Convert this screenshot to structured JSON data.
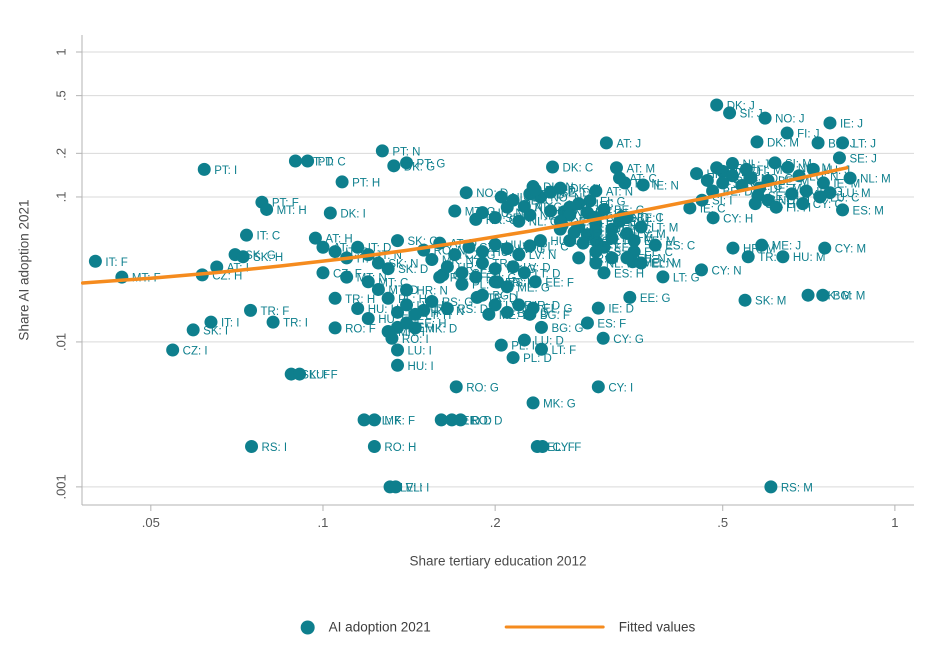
{
  "figure": {
    "background": "#ffffff"
  },
  "chart_data": {
    "type": "scatter",
    "title": "",
    "xlabel": "Share tertiary education 2012",
    "ylabel": "Share AI adoption 2021",
    "x_scale": "log",
    "y_scale": "log",
    "xlim": [
      0.0379,
      1.08
    ],
    "ylim": [
      0.00075,
      1.31
    ],
    "x_ticks": [
      0.05,
      0.1,
      0.2,
      0.5,
      1
    ],
    "y_ticks": [
      1,
      0.5,
      0.2,
      0.1,
      0.01,
      0.001
    ],
    "grid": "horizontal-only",
    "colors": {
      "point": "#0e7f8d",
      "point_label": "#0e7f8d",
      "fit_line": "#f58b1e",
      "gridline": "#d9d9d9",
      "axis": "#b3b3b3",
      "tick_label": "#565656"
    },
    "legend": [
      {
        "label": "AI adoption 2021",
        "marker": "point"
      },
      {
        "label": "Fitted values",
        "marker": "line"
      }
    ],
    "fitted_line": {
      "points": [
        [
          0.038,
          0.0255
        ],
        [
          0.05,
          0.0275
        ],
        [
          0.065,
          0.0301
        ],
        [
          0.085,
          0.0335
        ],
        [
          0.11,
          0.0377
        ],
        [
          0.14,
          0.0428
        ],
        [
          0.18,
          0.0496
        ],
        [
          0.23,
          0.0581
        ],
        [
          0.29,
          0.0683
        ],
        [
          0.37,
          0.0819
        ],
        [
          0.47,
          0.0989
        ],
        [
          0.58,
          0.1176
        ],
        [
          0.7,
          0.138
        ],
        [
          0.824,
          0.159
        ]
      ]
    },
    "points": [
      [
        "IT: F",
        0.04,
        0.036
      ],
      [
        "MT: F",
        0.0445,
        0.028
      ],
      [
        "CZ: H",
        0.0615,
        0.029
      ],
      [
        "CZ: I",
        0.0546,
        0.0088
      ],
      [
        "SK: I",
        0.0593,
        0.0121
      ],
      [
        "PT: I",
        0.062,
        0.155
      ],
      [
        "IT: I",
        0.0637,
        0.0137
      ],
      [
        "TR: I",
        0.0818,
        0.0137
      ],
      [
        "TR: F",
        0.0747,
        0.0165
      ],
      [
        "IT: C",
        0.0735,
        0.0545
      ],
      [
        "SK: G",
        0.0702,
        0.04
      ],
      [
        "SK: H",
        0.0725,
        0.0387
      ],
      [
        "AT: I",
        0.0652,
        0.0329
      ],
      [
        "PT: F",
        0.0782,
        0.092
      ],
      [
        "MT: H",
        0.0797,
        0.082
      ],
      [
        "PT: D",
        0.0895,
        0.177
      ],
      [
        "PT: C",
        0.094,
        0.177
      ],
      [
        "PT: N",
        0.127,
        0.208
      ],
      [
        "PT: G",
        0.14,
        0.172
      ],
      [
        "DK: G",
        0.133,
        0.164
      ],
      [
        "PT: H",
        0.108,
        0.127
      ],
      [
        "DK: I",
        0.103,
        0.0775
      ],
      [
        "RS: I",
        0.075,
        0.0019
      ],
      [
        "RO: H",
        0.123,
        0.0019
      ],
      [
        "SK: F",
        0.088,
        0.006
      ],
      [
        "LU: F",
        0.091,
        0.006
      ],
      [
        "LV: I",
        0.131,
        0.001
      ],
      [
        "EL: I",
        0.134,
        0.001
      ],
      [
        "HU: I",
        0.135,
        0.0069
      ],
      [
        "LU: I",
        0.135,
        0.0088
      ],
      [
        "ME: I",
        0.135,
        0.0126
      ],
      [
        "RO: I",
        0.132,
        0.0106
      ],
      [
        "RO: G",
        0.171,
        0.0049
      ],
      [
        "MK: G",
        0.233,
        0.0038
      ],
      [
        "CY: I",
        0.303,
        0.0049
      ],
      [
        "PL: F",
        0.118,
        0.0029
      ],
      [
        "MK: F",
        0.123,
        0.0029
      ],
      [
        "EL: D",
        0.161,
        0.0029
      ],
      [
        "EE: D",
        0.168,
        0.0029
      ],
      [
        "RO: D",
        0.174,
        0.0029
      ],
      [
        "EL: F",
        0.237,
        0.0019
      ],
      [
        "CY: F",
        0.242,
        0.0019
      ],
      [
        "RS: M",
        0.607,
        0.001
      ],
      [
        "PL: D",
        0.215,
        0.0078
      ],
      [
        "LT: F",
        0.241,
        0.0089
      ],
      [
        "PL: I",
        0.205,
        0.0095
      ],
      [
        "LU: D",
        0.225,
        0.0103
      ],
      [
        "CY: G",
        0.309,
        0.0106
      ],
      [
        "BG: G",
        0.241,
        0.0126
      ],
      [
        "ES: F",
        0.29,
        0.0135
      ],
      [
        "EL: G",
        0.233,
        0.0171
      ],
      [
        "IE: D",
        0.303,
        0.0171
      ],
      [
        "TR: D",
        0.186,
        0.0203
      ],
      [
        "ES: I",
        0.202,
        0.0259
      ],
      [
        "LT: G",
        0.393,
        0.0281
      ],
      [
        "EE: G",
        0.344,
        0.0203
      ],
      [
        "ME: N",
        0.348,
        0.0357
      ],
      [
        "ES: C",
        0.381,
        0.0465
      ],
      [
        "CZ: N",
        0.162,
        0.029
      ],
      [
        "HR: N",
        0.14,
        0.0228
      ],
      [
        "CY: N",
        0.459,
        0.0314
      ],
      [
        "TR: N",
        0.554,
        0.0387
      ],
      [
        "HU: M",
        0.637,
        0.0387
      ],
      [
        "ME: J",
        0.585,
        0.0465
      ],
      [
        "CY: M",
        0.754,
        0.0444
      ],
      [
        "HR: M",
        0.521,
        0.0444
      ],
      [
        "SK: M",
        0.547,
        0.0194
      ],
      [
        "MK: M",
        0.705,
        0.021
      ],
      [
        "BG: M",
        0.748,
        0.021
      ],
      [
        "IE: C",
        0.438,
        0.084
      ],
      [
        "CY: H",
        0.481,
        0.0718
      ],
      [
        "FI: G",
        0.293,
        0.094
      ],
      [
        "DK: C",
        0.252,
        0.161
      ],
      [
        "AT: M",
        0.326,
        0.159
      ],
      [
        "AT: J",
        0.313,
        0.236
      ],
      [
        "FI: N",
        0.337,
        0.125
      ],
      [
        "DK: N",
        0.233,
        0.118
      ],
      [
        "NO: D",
        0.178,
        0.107
      ],
      [
        "NL: N",
        0.264,
        0.079
      ],
      [
        "SE: N",
        0.262,
        0.064
      ],
      [
        "IE: N",
        0.363,
        0.121
      ],
      [
        "NO: C",
        0.333,
        0.073
      ],
      [
        "DK: J",
        0.488,
        0.431
      ],
      [
        "SI: J",
        0.514,
        0.38
      ],
      [
        "NO: J",
        0.593,
        0.35
      ],
      [
        "IE: J",
        0.77,
        0.324
      ],
      [
        "FI: J",
        0.648,
        0.276
      ],
      [
        "DK: M",
        0.574,
        0.24
      ],
      [
        "LT: J",
        0.81,
        0.236
      ],
      [
        "BE: J",
        0.734,
        0.236
      ],
      [
        "SE: J",
        0.8,
        0.186
      ],
      [
        "NL: M",
        0.835,
        0.135
      ],
      [
        "LU: M",
        0.77,
        0.107
      ],
      [
        "ES: M",
        0.81,
        0.0815
      ],
      [
        "IE: M",
        0.75,
        0.125
      ],
      [
        "SE: M",
        0.576,
        0.102
      ],
      [
        "HR: J",
        0.488,
        0.159
      ],
      [
        "SI: M",
        0.617,
        0.172
      ],
      [
        "SI: N",
        0.21,
        0.085
      ],
      [
        "MT: G",
        0.17,
        0.08
      ],
      [
        "HU: N",
        0.19,
        0.078
      ],
      [
        "HR: G",
        0.185,
        0.07
      ],
      [
        "SE: I",
        0.2,
        0.072
      ],
      [
        "NL: I",
        0.23,
        0.075
      ],
      [
        "NO: I",
        0.25,
        0.08
      ],
      [
        "SE: C",
        0.215,
        0.095
      ],
      [
        "NO: N",
        0.24,
        0.1
      ],
      [
        "NL: D",
        0.205,
        0.1
      ],
      [
        "FI: D",
        0.23,
        0.105
      ],
      [
        "SE: D",
        0.25,
        0.108
      ],
      [
        "NL: G",
        0.22,
        0.068
      ],
      [
        "DK: D",
        0.235,
        0.112
      ],
      [
        "DK: H",
        0.26,
        0.115
      ],
      [
        "AT: D",
        0.16,
        0.048
      ],
      [
        "RO: N",
        0.15,
        0.043
      ],
      [
        "MK: N",
        0.155,
        0.037
      ],
      [
        "HR: I",
        0.165,
        0.033
      ],
      [
        "SE: F",
        0.175,
        0.03
      ],
      [
        "FR: G",
        0.185,
        0.028
      ],
      [
        "FR: I",
        0.2,
        0.026
      ],
      [
        "ME: G",
        0.21,
        0.024
      ],
      [
        "PL: G",
        0.175,
        0.025
      ],
      [
        "PL: N",
        0.16,
        0.028
      ],
      [
        "BG: I",
        0.19,
        0.021
      ],
      [
        "CZ: G",
        0.17,
        0.04
      ],
      [
        "CZ: D",
        0.18,
        0.045
      ],
      [
        "HU: G",
        0.19,
        0.042
      ],
      [
        "HU: D",
        0.2,
        0.047
      ],
      [
        "LV: G",
        0.21,
        0.044
      ],
      [
        "LV: N",
        0.22,
        0.04
      ],
      [
        "PL: C",
        0.23,
        0.046
      ],
      [
        "HU: C",
        0.24,
        0.05
      ],
      [
        "LV: D",
        0.215,
        0.033
      ],
      [
        "LT: D",
        0.225,
        0.03
      ],
      [
        "EE: F",
        0.235,
        0.026
      ],
      [
        "LV: F",
        0.2,
        0.018
      ],
      [
        "BG: D",
        0.21,
        0.016
      ],
      [
        "HR: D",
        0.22,
        0.018
      ],
      [
        "BG: F",
        0.23,
        0.0155
      ],
      [
        "TR: C",
        0.19,
        0.035
      ],
      [
        "TR: G",
        0.2,
        0.032
      ],
      [
        "RS: G",
        0.155,
        0.019
      ],
      [
        "RS: D",
        0.165,
        0.017
      ],
      [
        "RS: N",
        0.15,
        0.0165
      ],
      [
        "ME: D",
        0.195,
        0.0155
      ],
      [
        "AT: F",
        0.1,
        0.045
      ],
      [
        "AT: H",
        0.097,
        0.052
      ],
      [
        "IT: G",
        0.105,
        0.042
      ],
      [
        "IT: H",
        0.11,
        0.038
      ],
      [
        "IT: D",
        0.115,
        0.045
      ],
      [
        "IT: N",
        0.12,
        0.04
      ],
      [
        "SK: N",
        0.125,
        0.035
      ],
      [
        "SK: D",
        0.13,
        0.032
      ],
      [
        "SK: C",
        0.135,
        0.05
      ],
      [
        "CZ: F",
        0.1,
        0.03
      ],
      [
        "MT: N",
        0.11,
        0.028
      ],
      [
        "MT: C",
        0.12,
        0.026
      ],
      [
        "MT: D",
        0.125,
        0.023
      ],
      [
        "TR: H",
        0.105,
        0.02
      ],
      [
        "PL: H",
        0.13,
        0.02
      ],
      [
        "HU: H",
        0.115,
        0.017
      ],
      [
        "HU: F",
        0.12,
        0.0145
      ],
      [
        "BG: H",
        0.135,
        0.016
      ],
      [
        "LV: H",
        0.14,
        0.018
      ],
      [
        "LT: H",
        0.145,
        0.0155
      ],
      [
        "EE: H",
        0.14,
        0.0135
      ],
      [
        "RO: F",
        0.105,
        0.0125
      ],
      [
        "MK: D",
        0.145,
        0.0125
      ],
      [
        "MK: I",
        0.13,
        0.0118
      ],
      [
        "FI: C",
        0.28,
        0.09
      ],
      [
        "EE: N",
        0.3,
        0.065
      ],
      [
        "EE: C",
        0.32,
        0.06
      ],
      [
        "LT: M",
        0.36,
        0.062
      ],
      [
        "LV: M",
        0.34,
        0.056
      ],
      [
        "EE: M",
        0.35,
        0.05
      ],
      [
        "LT: I",
        0.3,
        0.05
      ],
      [
        "EE: I",
        0.31,
        0.045
      ],
      [
        "FI: I",
        0.33,
        0.068
      ],
      [
        "NL: C",
        0.27,
        0.085
      ],
      [
        "BE: N",
        0.29,
        0.078
      ],
      [
        "BE: G",
        0.3,
        0.072
      ],
      [
        "BE: C",
        0.31,
        0.082
      ],
      [
        "DE: C",
        0.27,
        0.075
      ],
      [
        "DE: G",
        0.26,
        0.068
      ],
      [
        "DE: N",
        0.28,
        0.062
      ],
      [
        "FR: C",
        0.29,
        0.055
      ],
      [
        "FR: N",
        0.3,
        0.058
      ],
      [
        "FR: M",
        0.32,
        0.052
      ],
      [
        "BE: I",
        0.34,
        0.072
      ],
      [
        "ES: G",
        0.27,
        0.05
      ],
      [
        "ES: D",
        0.3,
        0.042
      ],
      [
        "FR: D",
        0.26,
        0.06
      ],
      [
        "DE: I",
        0.285,
        0.048
      ],
      [
        "DE: D",
        0.275,
        0.057
      ],
      [
        "FR: H",
        0.28,
        0.038
      ],
      [
        "BE: H",
        0.32,
        0.038
      ],
      [
        "NL: H",
        0.3,
        0.035
      ],
      [
        "ES: H",
        0.31,
        0.03
      ],
      [
        "EL: C",
        0.35,
        0.042
      ],
      [
        "EL: M",
        0.36,
        0.035
      ],
      [
        "EL: N",
        0.34,
        0.038
      ],
      [
        "NL: J",
        0.52,
        0.17
      ],
      [
        "DE: J",
        0.5,
        0.15
      ],
      [
        "FR: J",
        0.52,
        0.14
      ],
      [
        "BE: M",
        0.6,
        0.13
      ],
      [
        "SI: C",
        0.47,
        0.13
      ],
      [
        "HR: C",
        0.45,
        0.145
      ],
      [
        "SI: G",
        0.5,
        0.125
      ],
      [
        "LU: J",
        0.72,
        0.155
      ],
      [
        "LU: N",
        0.68,
        0.14
      ],
      [
        "IE: G",
        0.7,
        0.11
      ],
      [
        "CY: J",
        0.66,
        0.105
      ],
      [
        "CY: C",
        0.69,
        0.09
      ],
      [
        "NO: M",
        0.65,
        0.16
      ],
      [
        "FI: M",
        0.55,
        0.155
      ],
      [
        "NO: G",
        0.56,
        0.135
      ],
      [
        "SE: G",
        0.54,
        0.12
      ],
      [
        "DE: M",
        0.58,
        0.115
      ],
      [
        "BE: D",
        0.48,
        0.11
      ],
      [
        "SI: I",
        0.46,
        0.095
      ],
      [
        "LU: C",
        0.74,
        0.1
      ],
      [
        "NO: H",
        0.6,
        0.095
      ],
      [
        "SE: H",
        0.57,
        0.09
      ],
      [
        "FI: H",
        0.62,
        0.085
      ],
      [
        "AT: C",
        0.33,
        0.135
      ],
      [
        "AT: N",
        0.3,
        0.11
      ],
      [
        "AT: G",
        0.225,
        0.086
      ]
    ]
  }
}
